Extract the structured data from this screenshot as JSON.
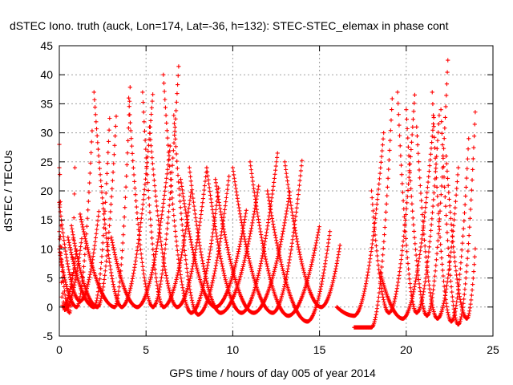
{
  "chart_data": {
    "type": "scatter",
    "title": "dSTEC Iono. truth (auck, Lon=174, Lat=-36, h=132): STEC-STEC_elemax in phase cont",
    "xlabel": "GPS time / hours of day 005 of year 2014",
    "ylabel": "dSTEC  / TECUs",
    "xlim": [
      0,
      25
    ],
    "ylim": [
      -5,
      45
    ],
    "xticks": [
      0,
      5,
      10,
      15,
      20,
      25
    ],
    "yticks": [
      -5,
      0,
      5,
      10,
      15,
      20,
      25,
      30,
      35,
      40,
      45
    ],
    "grid": true,
    "legend": "none",
    "marker": "plus",
    "series_color": "#ff0000",
    "tracks": [
      {
        "t0": 0.0,
        "t1": 1.3,
        "tmin": 0.3,
        "ystart": 28,
        "ymin": -0.5,
        "yend": 12
      },
      {
        "t0": 0.0,
        "t1": 1.0,
        "tmin": 0.2,
        "ystart": 24,
        "ymin": 0,
        "yend": 10
      },
      {
        "t0": 0.0,
        "t1": 0.9,
        "tmin": 0.6,
        "ystart": 13,
        "ymin": -1,
        "yend": 24
      },
      {
        "t0": 0.0,
        "t1": 1.9,
        "tmin": 1.0,
        "ystart": 10,
        "ymin": 0,
        "yend": 31
      },
      {
        "t0": 0.0,
        "t1": 2.3,
        "tmin": 1.2,
        "ystart": 18,
        "ymin": 1,
        "yend": 17
      },
      {
        "t0": 0.5,
        "t1": 2.9,
        "tmin": 2.0,
        "ystart": 12,
        "ymin": 0,
        "yend": 32.5
      },
      {
        "t0": 0.7,
        "t1": 3.3,
        "tmin": 2.2,
        "ystart": 14,
        "ymin": 0,
        "yend": 34
      },
      {
        "t0": 1.2,
        "t1": 4.1,
        "tmin": 3.2,
        "ystart": 16,
        "ymin": 0,
        "yend": 39.5
      },
      {
        "t0": 2.0,
        "t1": 5.4,
        "tmin": 3.6,
        "ystart": 37,
        "ymin": 0,
        "yend": 37
      },
      {
        "t0": 3.0,
        "t1": 6.4,
        "tmin": 4.5,
        "ystart": 12,
        "ymin": 0,
        "yend": 28
      },
      {
        "t0": 4.0,
        "t1": 6.9,
        "tmin": 5.4,
        "ystart": 36,
        "ymin": 0,
        "yend": 42.5
      },
      {
        "t0": 4.8,
        "t1": 7.6,
        "tmin": 6.0,
        "ystart": 37,
        "ymin": 0,
        "yend": 20
      },
      {
        "t0": 5.2,
        "t1": 8.5,
        "tmin": 6.8,
        "ystart": 31,
        "ymin": 0,
        "yend": 24
      },
      {
        "t0": 6.0,
        "t1": 9.2,
        "tmin": 7.6,
        "ystart": 40,
        "ymin": -1,
        "yend": 21
      },
      {
        "t0": 6.6,
        "t1": 9.8,
        "tmin": 8.0,
        "ystart": 33,
        "ymin": -1.3,
        "yend": 23
      },
      {
        "t0": 7.0,
        "t1": 10.8,
        "tmin": 9.0,
        "ystart": 22,
        "ymin": 0,
        "yend": 17
      },
      {
        "t0": 7.5,
        "t1": 11.5,
        "tmin": 9.3,
        "ystart": 24,
        "ymin": -1,
        "yend": 21
      },
      {
        "t0": 8.5,
        "t1": 12.6,
        "tmin": 10.5,
        "ystart": 24,
        "ymin": -1,
        "yend": 27
      },
      {
        "t0": 9.0,
        "t1": 13.3,
        "tmin": 11.2,
        "ystart": 22,
        "ymin": -1,
        "yend": 20
      },
      {
        "t0": 10.0,
        "t1": 14.0,
        "tmin": 12.3,
        "ystart": 24,
        "ymin": -1,
        "yend": 25.5
      },
      {
        "t0": 11.0,
        "t1": 15.0,
        "tmin": 13.2,
        "ystart": 25,
        "ymin": -1.5,
        "yend": 14
      },
      {
        "t0": 12.0,
        "t1": 15.6,
        "tmin": 14.3,
        "ystart": 20,
        "ymin": -2.5,
        "yend": 13
      },
      {
        "t0": 13.0,
        "t1": 16.2,
        "tmin": 15.1,
        "ystart": 25,
        "ymin": 0,
        "yend": 11
      },
      {
        "t0": 16.0,
        "t1": 18.7,
        "tmin": 17.0,
        "ystart": 0,
        "ymin": -1.5,
        "yend": 30
      },
      {
        "t0": 17.0,
        "t1": 19.2,
        "tmin": 18.0,
        "ystart": -3.5,
        "ymin": -3.5,
        "yend": 36.5
      },
      {
        "t0": 18.0,
        "t1": 20.5,
        "tmin": 19.0,
        "ystart": 20,
        "ymin": -1,
        "yend": 37
      },
      {
        "t0": 18.5,
        "t1": 21.6,
        "tmin": 19.8,
        "ystart": 6,
        "ymin": -2,
        "yend": 33
      },
      {
        "t0": 19.5,
        "t1": 21.9,
        "tmin": 20.6,
        "ystart": 37,
        "ymin": -1,
        "yend": 33
      },
      {
        "t0": 20.0,
        "t1": 22.4,
        "tmin": 21.2,
        "ystart": 34,
        "ymin": -1.5,
        "yend": 42.5
      },
      {
        "t0": 20.6,
        "t1": 23.0,
        "tmin": 21.8,
        "ystart": 31,
        "ymin": -2,
        "yend": 24
      },
      {
        "t0": 21.5,
        "t1": 23.6,
        "tmin": 22.6,
        "ystart": 37,
        "ymin": -2.5,
        "yend": 29
      },
      {
        "t0": 22.0,
        "t1": 24.0,
        "tmin": 23.0,
        "ystart": 34,
        "ymin": -3,
        "yend": 35
      },
      {
        "t0": 22.3,
        "t1": 24.0,
        "tmin": 23.5,
        "ystart": 26,
        "ymin": -2,
        "yend": 11
      }
    ]
  }
}
